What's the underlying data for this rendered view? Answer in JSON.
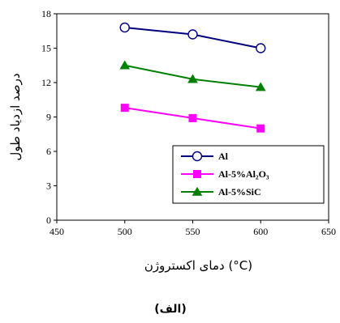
{
  "chart_data": {
    "type": "line",
    "title": "",
    "xlabel": "دمای اکستروژن (°C)",
    "ylabel": "درصد ازدیاد طول",
    "caption": "(الف)",
    "xlim": [
      450,
      650
    ],
    "ylim": [
      0,
      18
    ],
    "xticks": [
      "450",
      "500",
      "550",
      "600",
      "650"
    ],
    "yticks": [
      "0",
      "3",
      "6",
      "9",
      "12",
      "15",
      "18"
    ],
    "grid": false,
    "legend_position": "bottom-right",
    "x": [
      500,
      550,
      600
    ],
    "series": [
      {
        "name": "Al",
        "values": [
          16.8,
          16.2,
          15.0
        ],
        "color": "#000080",
        "marker": "circle-open"
      },
      {
        "name": "Al-5%Al₂O₃",
        "values": [
          9.8,
          8.9,
          8.0
        ],
        "color": "#ff00ff",
        "marker": "square"
      },
      {
        "name": "Al-5%SiC",
        "values": [
          13.5,
          12.3,
          11.6
        ],
        "color": "#008000",
        "marker": "triangle"
      }
    ]
  }
}
